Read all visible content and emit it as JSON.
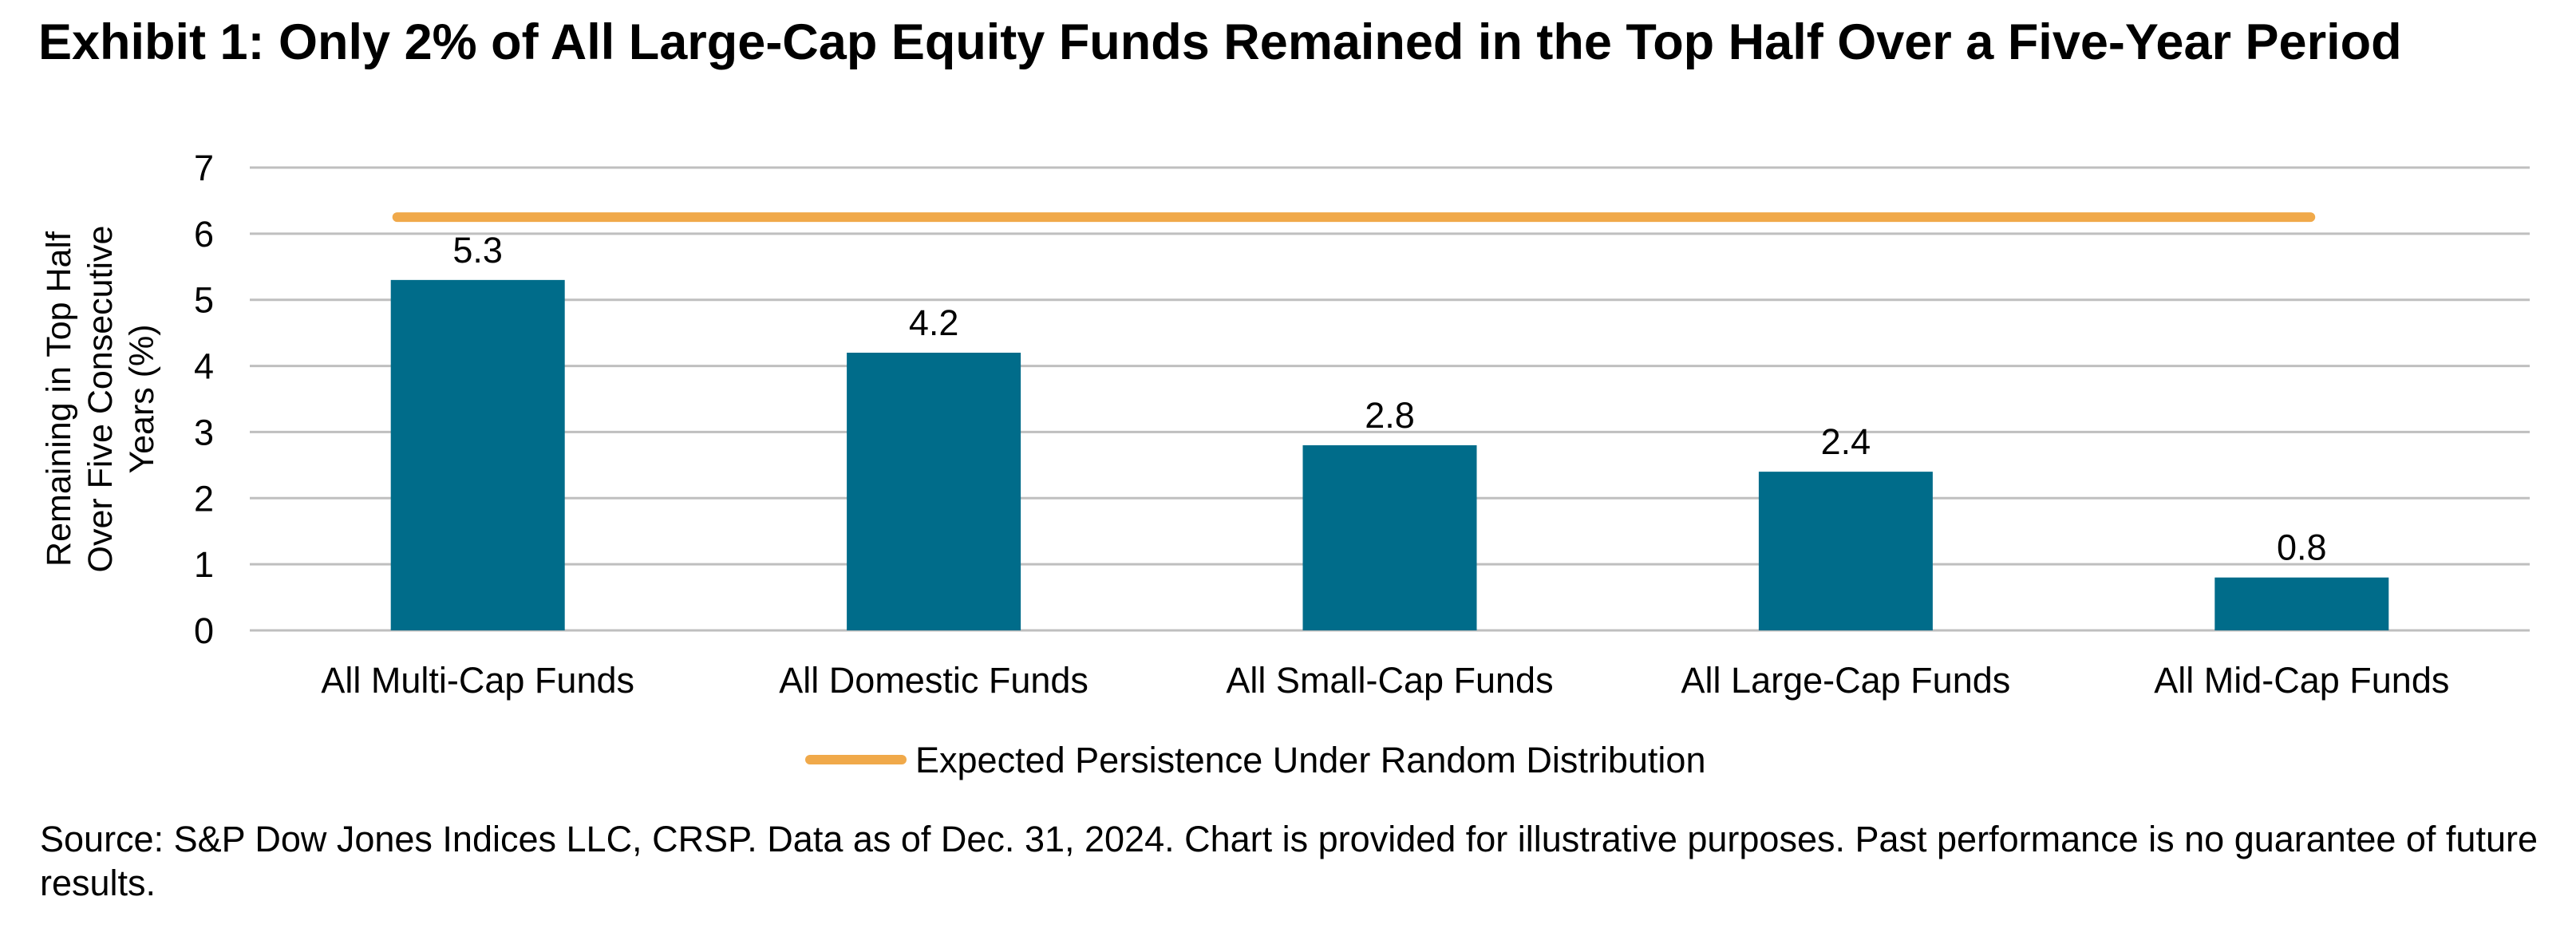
{
  "title": "Exhibit 1: Only 2% of All Large-Cap Equity Funds Remained in the Top Half Over a Five-Year Period",
  "source": "Source: S&P Dow Jones Indices LLC, CRSP.  Data as of Dec. 31, 2024.  Chart is provided for illustrative purposes.  Past performance is no guarantee of future results.",
  "chart_data": {
    "type": "bar",
    "categories": [
      "All Multi-Cap Funds",
      "All Domestic Funds",
      "All Small-Cap Funds",
      "All Large-Cap Funds",
      "All Mid-Cap Funds"
    ],
    "values": [
      5.3,
      4.2,
      2.8,
      2.4,
      0.8
    ],
    "data_labels": [
      "5.3",
      "4.2",
      "2.8",
      "2.4",
      "0.8"
    ],
    "ylabel": [
      "Remaining in Top Half",
      "Over Five Consecutive",
      "Years (%)"
    ],
    "ylim": [
      0,
      7
    ],
    "yticks": [
      0,
      1,
      2,
      3,
      4,
      5,
      6,
      7
    ],
    "grid": true,
    "legend_position": "bottom",
    "reference_line": {
      "name": "Expected Persistence Under Random Distribution",
      "value": 6.25
    },
    "colors": {
      "bar": "#006C8A",
      "reference_line": "#F0A94A",
      "grid": "#BFBFBF"
    }
  }
}
